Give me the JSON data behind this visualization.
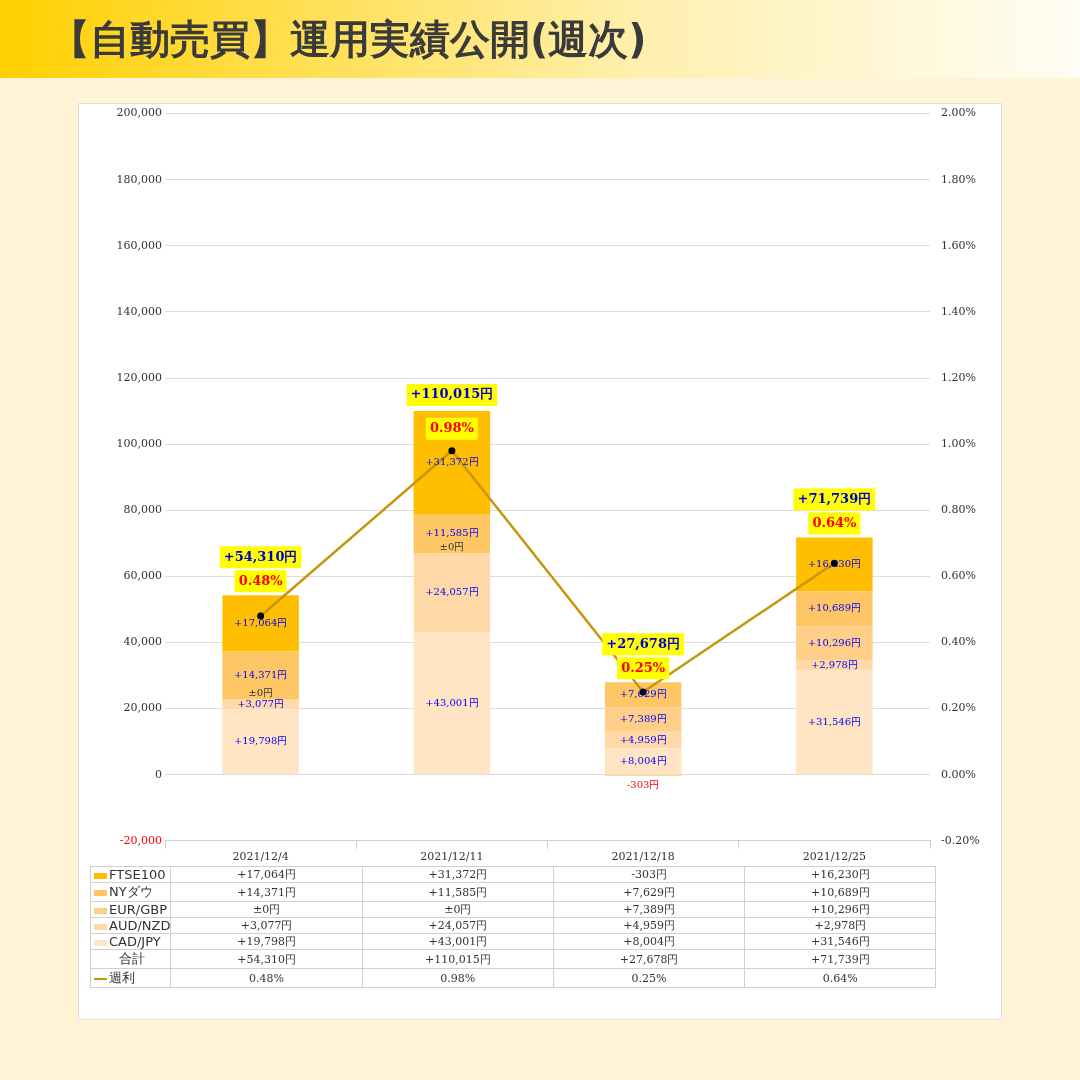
{
  "chart_data": {
    "type": "bar",
    "title": "【自動売買】運用実績公開(週次)",
    "categories": [
      "2021/12/4",
      "2021/12/11",
      "2021/12/18",
      "2021/12/25"
    ],
    "stacked": true,
    "grid": "y",
    "legend": "bottom",
    "marker": "circle",
    "annotations": [
      "合計"
    ],
    "ylim": [
      -20000,
      200000
    ],
    "yticks": [
      {
        "value": -20000,
        "label": "-20,000"
      },
      {
        "value": 0,
        "label": "0"
      },
      {
        "value": 20000,
        "label": "20,000"
      },
      {
        "value": 40000,
        "label": "40,000"
      },
      {
        "value": 60000,
        "label": "60,000"
      },
      {
        "value": 80000,
        "label": "80,000"
      },
      {
        "value": 100000,
        "label": "100,000"
      },
      {
        "value": 120000,
        "label": "120,000"
      },
      {
        "value": 140000,
        "label": "140,000"
      },
      {
        "value": 160000,
        "label": "160,000"
      },
      {
        "value": 180000,
        "label": "180,000"
      },
      {
        "value": 200000,
        "label": "200,000"
      }
    ],
    "y2lim": [
      -0.2,
      2
    ],
    "y2ticks": [
      {
        "value": -0.2,
        "label": "-0.20%"
      },
      {
        "value": 0,
        "label": "0.00%"
      },
      {
        "value": 0.2,
        "label": "0.20%"
      },
      {
        "value": 0.4,
        "label": "0.40%"
      },
      {
        "value": 0.6,
        "label": "0.60%"
      },
      {
        "value": 0.8,
        "label": "0.80%"
      },
      {
        "value": 1,
        "label": "1.00%"
      },
      {
        "value": 1.2,
        "label": "1.20%"
      },
      {
        "value": 1.4,
        "label": "1.40%"
      },
      {
        "value": 1.6,
        "label": "1.60%"
      },
      {
        "value": 1.8,
        "label": "1.80%"
      },
      {
        "value": 2,
        "label": "2.00%"
      }
    ],
    "totals": [
      "+54,310円",
      "+110,015円",
      "+27,678円",
      "+71,739円"
    ],
    "series": [
      {
        "name": "CAD/JPY",
        "color": "#ffe5c4",
        "values": [
          19798,
          43001,
          8004,
          31546
        ],
        "value_labels": [
          "+19,798円",
          "+43,001円",
          "+8,004円",
          "+31,546円"
        ]
      },
      {
        "name": "AUD/NZD",
        "color": "#ffdaa8",
        "values": [
          3077,
          24057,
          4959,
          2978
        ],
        "value_labels": [
          "+3,077円",
          "+24,057円",
          "+4,959円",
          "+2,978円"
        ]
      },
      {
        "name": "EUR/GBP",
        "color": "#ffce88",
        "values": [
          0,
          0,
          7389,
          10296
        ],
        "value_labels": [
          "±0円",
          "±0円",
          "+7,389円",
          "+10,296円"
        ]
      },
      {
        "name": "NYダウ",
        "color": "#ffc666",
        "values": [
          14371,
          11585,
          7629,
          10689
        ],
        "value_labels": [
          "+14,371円",
          "+11,585円",
          "+7,629円",
          "+10,689円"
        ]
      },
      {
        "name": "FTSE100",
        "color": "#ffbf00",
        "values": [
          17064,
          31372,
          -303,
          16230
        ],
        "value_labels": [
          "+17,064円",
          "+31,372円",
          "-303円",
          "+16,230円"
        ]
      },
      {
        "name": "週利",
        "type": "line",
        "axis": "y2",
        "color": "#c8960a",
        "values": [
          0.48,
          0.98,
          0.25,
          0.64
        ],
        "value_labels": [
          "0.48%",
          "0.98%",
          "0.25%",
          "0.64%"
        ]
      }
    ]
  }
}
